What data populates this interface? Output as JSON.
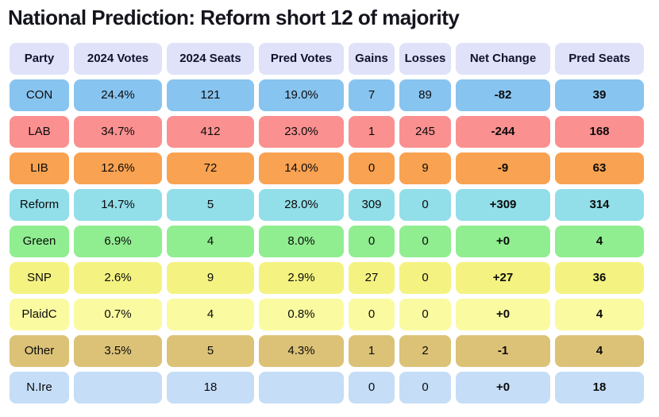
{
  "title": "National Prediction: Reform short 12 of majority",
  "colors": {
    "page_bg": "#FFFFFF",
    "header_bg": "#DFE2F8",
    "header_text": "#12122E",
    "cell_text": "#0B0B0B",
    "title_text": "#15151E"
  },
  "chart_data": {
    "type": "table",
    "title": "National Prediction: Reform short 12 of majority",
    "columns": [
      "Party",
      "2024 Votes",
      "2024 Seats",
      "Pred Votes",
      "Gains",
      "Losses",
      "Net Change",
      "Pred Seats"
    ],
    "rows": [
      {
        "party": "CON",
        "values": [
          "24.4%",
          "121",
          "19.0%",
          "7",
          "89",
          "-82",
          "39"
        ],
        "row_color": "#88C4F0"
      },
      {
        "party": "LAB",
        "values": [
          "34.7%",
          "412",
          "23.0%",
          "1",
          "245",
          "-244",
          "168"
        ],
        "row_color": "#FB9090"
      },
      {
        "party": "LIB",
        "values": [
          "12.6%",
          "72",
          "14.0%",
          "0",
          "9",
          "-9",
          "63"
        ],
        "row_color": "#F9A251"
      },
      {
        "party": "Reform",
        "values": [
          "14.7%",
          "5",
          "28.0%",
          "309",
          "0",
          "+309",
          "314"
        ],
        "row_color": "#92DEE9"
      },
      {
        "party": "Green",
        "values": [
          "6.9%",
          "4",
          "8.0%",
          "0",
          "0",
          "+0",
          "4"
        ],
        "row_color": "#90EE90"
      },
      {
        "party": "SNP",
        "values": [
          "2.6%",
          "9",
          "2.9%",
          "27",
          "0",
          "+27",
          "36"
        ],
        "row_color": "#F4F381"
      },
      {
        "party": "PlaidC",
        "values": [
          "0.7%",
          "4",
          "0.8%",
          "0",
          "0",
          "+0",
          "4"
        ],
        "row_color": "#FAFAA1"
      },
      {
        "party": "Other",
        "values": [
          "3.5%",
          "5",
          "4.3%",
          "1",
          "2",
          "-1",
          "4"
        ],
        "row_color": "#DCC277"
      },
      {
        "party": "N.Ire",
        "values": [
          "",
          "18",
          "",
          "0",
          "0",
          "+0",
          "18"
        ],
        "row_color": "#C5DDF6"
      }
    ]
  }
}
